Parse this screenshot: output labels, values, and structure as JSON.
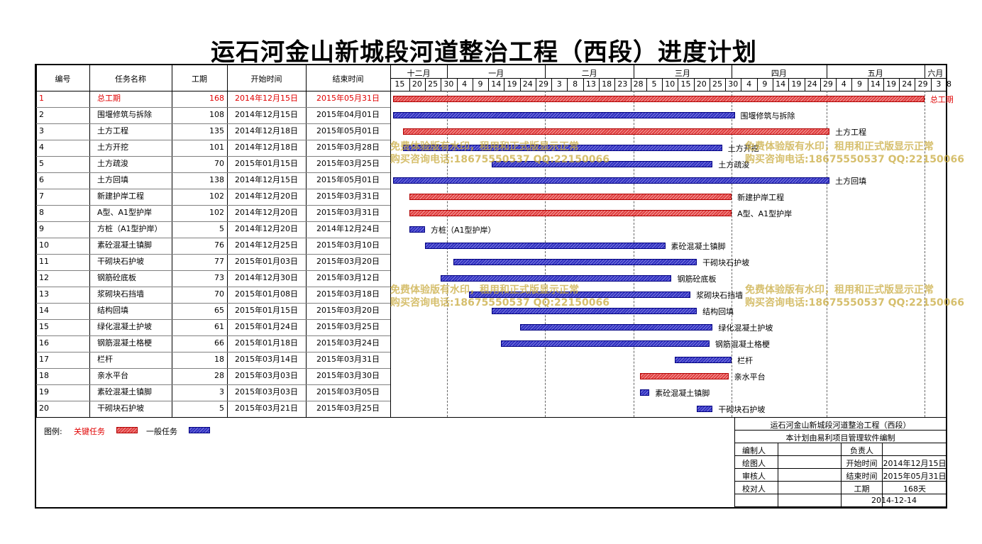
{
  "title": "运石河金山新城段河道整治工程（西段）进度计划",
  "table_headers": {
    "id": "编号",
    "name": "任务名称",
    "duration": "工期",
    "start": "开始时间",
    "end": "结束时间"
  },
  "months": [
    "十二月",
    "一月",
    "二月",
    "三月",
    "四月",
    "五月",
    "六月"
  ],
  "day_ticks": [
    "15",
    "20",
    "25",
    "30",
    "4",
    "9",
    "14",
    "19",
    "24",
    "29",
    "3",
    "8",
    "13",
    "18",
    "23",
    "28",
    "5",
    "10",
    "15",
    "20",
    "25",
    "30",
    "4",
    "9",
    "14",
    "19",
    "24",
    "29",
    "4",
    "9",
    "14",
    "19",
    "24",
    "29",
    "3",
    "8"
  ],
  "colors": {
    "critical": "#e04040",
    "normal": "#3030c0",
    "critical_text": "#e00000"
  },
  "chart_data": {
    "type": "gantt",
    "title": "运石河金山新城段河道整治工程（西段）进度计划",
    "x_range": [
      "2014-12-14",
      "2015-06-08"
    ],
    "tasks": [
      {
        "id": "1",
        "name": "总工期",
        "duration": "168",
        "start": "2014年12月15日",
        "end": "2015年05月31日",
        "s": "2014-12-15",
        "e": "2015-05-31",
        "critical": true
      },
      {
        "id": "2",
        "name": "围堰修筑与拆除",
        "duration": "108",
        "start": "2014年12月15日",
        "end": "2015年04月01日",
        "s": "2014-12-15",
        "e": "2015-04-01",
        "critical": false
      },
      {
        "id": "3",
        "name": "土方工程",
        "duration": "135",
        "start": "2014年12月18日",
        "end": "2015年05月01日",
        "s": "2014-12-18",
        "e": "2015-05-01",
        "critical": true
      },
      {
        "id": "4",
        "name": "土方开挖",
        "duration": "101",
        "start": "2014年12月18日",
        "end": "2015年03月28日",
        "s": "2014-12-18",
        "e": "2015-03-28",
        "critical": false
      },
      {
        "id": "5",
        "name": "土方疏浚",
        "duration": "70",
        "start": "2015年01月15日",
        "end": "2015年03月25日",
        "s": "2015-01-15",
        "e": "2015-03-25",
        "critical": false
      },
      {
        "id": "6",
        "name": "土方回填",
        "duration": "138",
        "start": "2014年12月15日",
        "end": "2015年05月01日",
        "s": "2014-12-15",
        "e": "2015-05-01",
        "critical": false
      },
      {
        "id": "7",
        "name": "新建护岸工程",
        "duration": "102",
        "start": "2014年12月20日",
        "end": "2015年03月31日",
        "s": "2014-12-20",
        "e": "2015-03-31",
        "critical": true
      },
      {
        "id": "8",
        "name": "A型、A1型护岸",
        "duration": "102",
        "start": "2014年12月20日",
        "end": "2015年03月31日",
        "s": "2014-12-20",
        "e": "2015-03-31",
        "critical": true
      },
      {
        "id": "9",
        "name": "方桩（A1型护岸）",
        "duration": "5",
        "start": "2014年12月20日",
        "end": "2014年12月24日",
        "s": "2014-12-20",
        "e": "2014-12-24",
        "critical": false
      },
      {
        "id": "10",
        "name": "素砼混凝土镇脚",
        "duration": "76",
        "start": "2014年12月25日",
        "end": "2015年03月10日",
        "s": "2014-12-25",
        "e": "2015-03-10",
        "critical": false
      },
      {
        "id": "11",
        "name": "干砌块石护坡",
        "duration": "77",
        "start": "2015年01月03日",
        "end": "2015年03月20日",
        "s": "2015-01-03",
        "e": "2015-03-20",
        "critical": false
      },
      {
        "id": "12",
        "name": "钢筋砼底板",
        "duration": "73",
        "start": "2014年12月30日",
        "end": "2015年03月12日",
        "s": "2014-12-30",
        "e": "2015-03-12",
        "critical": false
      },
      {
        "id": "13",
        "name": "浆砌块石挡墙",
        "duration": "70",
        "start": "2015年01月08日",
        "end": "2015年03月18日",
        "s": "2015-01-08",
        "e": "2015-03-18",
        "critical": false
      },
      {
        "id": "14",
        "name": "结构回填",
        "duration": "65",
        "start": "2015年01月15日",
        "end": "2015年03月20日",
        "s": "2015-01-15",
        "e": "2015-03-20",
        "critical": false
      },
      {
        "id": "15",
        "name": "绿化混凝土护坡",
        "duration": "61",
        "start": "2015年01月24日",
        "end": "2015年03月25日",
        "s": "2015-01-24",
        "e": "2015-03-25",
        "critical": false
      },
      {
        "id": "16",
        "name": "钢筋混凝土格梗",
        "duration": "66",
        "start": "2015年01月18日",
        "end": "2015年03月24日",
        "s": "2015-01-18",
        "e": "2015-03-24",
        "critical": false
      },
      {
        "id": "17",
        "name": "栏杆",
        "duration": "18",
        "start": "2015年03月14日",
        "end": "2015年03月31日",
        "s": "2015-03-14",
        "e": "2015-03-31",
        "critical": false
      },
      {
        "id": "18",
        "name": "亲水平台",
        "duration": "28",
        "start": "2015年03月03日",
        "end": "2015年03月30日",
        "s": "2015-03-03",
        "e": "2015-03-30",
        "critical": true
      },
      {
        "id": "19",
        "name": "素砼混凝土镇脚",
        "duration": "3",
        "start": "2015年03月03日",
        "end": "2015年03月05日",
        "s": "2015-03-03",
        "e": "2015-03-05",
        "critical": false
      },
      {
        "id": "20",
        "name": "干砌块石护坡",
        "duration": "5",
        "start": "2015年03月21日",
        "end": "2015年03月25日",
        "s": "2015-03-21",
        "e": "2015-03-25",
        "critical": false
      }
    ]
  },
  "legend": {
    "label": "图例:",
    "critical": "关键任务",
    "normal": "一般任务"
  },
  "info": {
    "project": "运石河金山新城段河道整治工程（西段）",
    "note": "本计划由易利项目管理软件编制",
    "compiler": "编制人",
    "responsible": "负责人",
    "drawer": "绘图人",
    "start_label": "开始时间",
    "start_value": "2014年12月15日",
    "reviewer": "审核人",
    "end_label": "结束时间",
    "end_value": "2015年05月31日",
    "checker": "校对人",
    "dur_label": "工期",
    "dur_value": "168天",
    "date": "2014-12-14"
  },
  "watermark": {
    "line1": "免费体验版有水印，租用和正式版显示正常",
    "line2": "购买咨询电话:18675550537 QQ:22150066"
  }
}
